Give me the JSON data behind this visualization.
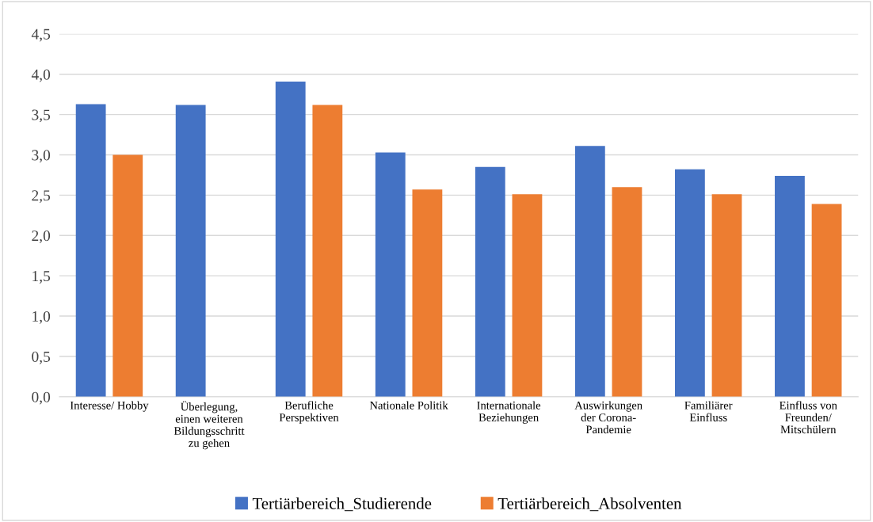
{
  "chart_data": {
    "type": "bar",
    "categories": [
      "Interesse/ Hobby",
      "Überlegung,\neinen weiteren\nBildungsschritt\nzu gehen",
      "Berufliche\nPerspektiven",
      "Nationale Politik",
      "Internationale\nBeziehungen",
      "Auswirkungen\nder Corona-\nPandemie",
      "Familiärer\nEinfluss",
      "Einfluss von\nFreunden/\nMitschülern"
    ],
    "series": [
      {
        "name": "Tertiärbereich_Studierende",
        "color": "#4472c4",
        "values": [
          3.63,
          3.62,
          3.91,
          3.03,
          2.85,
          3.11,
          2.82,
          2.74
        ]
      },
      {
        "name": "Tertiärbereich_Absolventen",
        "color": "#ed7d31",
        "values": [
          3.0,
          null,
          3.62,
          2.57,
          2.51,
          2.6,
          2.51,
          2.39
        ]
      }
    ],
    "ylim": [
      0,
      4.5
    ],
    "yticks": [
      {
        "value": 0,
        "label": "0,0"
      },
      {
        "value": 0.5,
        "label": "0,5"
      },
      {
        "value": 1,
        "label": "1,0"
      },
      {
        "value": 1.5,
        "label": "1,5"
      },
      {
        "value": 2,
        "label": "2,0"
      },
      {
        "value": 2.5,
        "label": "2,5"
      },
      {
        "value": 3,
        "label": "3,0"
      },
      {
        "value": 3.5,
        "label": "3,5"
      },
      {
        "value": 4,
        "label": "4,0"
      },
      {
        "value": 4.5,
        "label": "4,5"
      }
    ],
    "grid": "y",
    "legend": "bottom"
  }
}
